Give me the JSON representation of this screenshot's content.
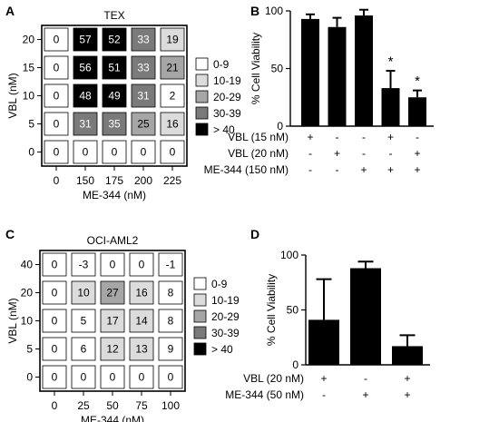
{
  "chart_data": [
    {
      "panel": "A",
      "type": "heatmap",
      "title": "TEX",
      "xlabel": "ME-344 (nM)",
      "ylabel": "VBL (nM)",
      "x": [
        "0",
        "150",
        "175",
        "200",
        "225"
      ],
      "y": [
        "20",
        "15",
        "10",
        "5",
        "0"
      ],
      "values": [
        [
          0,
          57,
          52,
          33,
          19
        ],
        [
          0,
          56,
          51,
          33,
          21
        ],
        [
          0,
          48,
          49,
          31,
          2
        ],
        [
          0,
          31,
          35,
          25,
          16
        ],
        [
          0,
          0,
          0,
          0,
          0
        ]
      ],
      "legend": [
        "0-9",
        "10-19",
        "20-29",
        "30-39",
        "> 40"
      ]
    },
    {
      "panel": "B",
      "type": "bar",
      "ylabel": "% Cell Viability",
      "ylim": [
        0,
        100
      ],
      "yticks": [
        "0",
        "50",
        "100"
      ],
      "values": [
        93,
        86,
        96,
        33,
        25
      ],
      "errors": [
        4,
        8,
        5,
        15,
        6
      ],
      "significance": [
        "",
        "",
        "",
        "*",
        "*"
      ],
      "conditions": [
        {
          "label": "VBL (15 nM)",
          "marks": [
            "+",
            "-",
            "-",
            "+",
            "-"
          ]
        },
        {
          "label": "VBL (20 nM)",
          "marks": [
            "-",
            "+",
            "-",
            "-",
            "+"
          ]
        },
        {
          "label": "ME-344 (150 nM)",
          "marks": [
            "-",
            "-",
            "+",
            "+",
            "+"
          ]
        }
      ]
    },
    {
      "panel": "C",
      "type": "heatmap",
      "title": "OCI-AML2",
      "xlabel": "ME-344 (nM)",
      "ylabel": "VBL (nM)",
      "x": [
        "0",
        "25",
        "50",
        "75",
        "100"
      ],
      "y": [
        "40",
        "20",
        "10",
        "5",
        "0"
      ],
      "values": [
        [
          0,
          -3,
          0,
          0,
          -1
        ],
        [
          0,
          10,
          27,
          16,
          8
        ],
        [
          0,
          5,
          17,
          14,
          8
        ],
        [
          0,
          6,
          12,
          13,
          9
        ],
        [
          0,
          0,
          0,
          0,
          0
        ]
      ],
      "legend": [
        "0-9",
        "10-19",
        "20-29",
        "30-39",
        "> 40"
      ]
    },
    {
      "panel": "D",
      "type": "bar",
      "ylabel": "% Cell Viability",
      "ylim": [
        0,
        100
      ],
      "yticks": [
        "0",
        "50",
        "100"
      ],
      "values": [
        41,
        88,
        17
      ],
      "errors": [
        37,
        6,
        10
      ],
      "significance": [
        "",
        "",
        ""
      ],
      "conditions": [
        {
          "label": "VBL (20 nM)",
          "marks": [
            "+",
            "-",
            "+"
          ]
        },
        {
          "label": "ME-344 (50 nM)",
          "marks": [
            "-",
            "+",
            "+"
          ]
        }
      ]
    }
  ],
  "panel_labels": [
    "A",
    "B",
    "C",
    "D"
  ],
  "colors": {
    "bin_0_9": "#ffffff",
    "bin_10_19": "#dcdcdc",
    "bin_20_29": "#a6a6a6",
    "bin_30_39": "#7a7a7a",
    "bin_40_plus": "#000000",
    "bar": "#000000"
  }
}
